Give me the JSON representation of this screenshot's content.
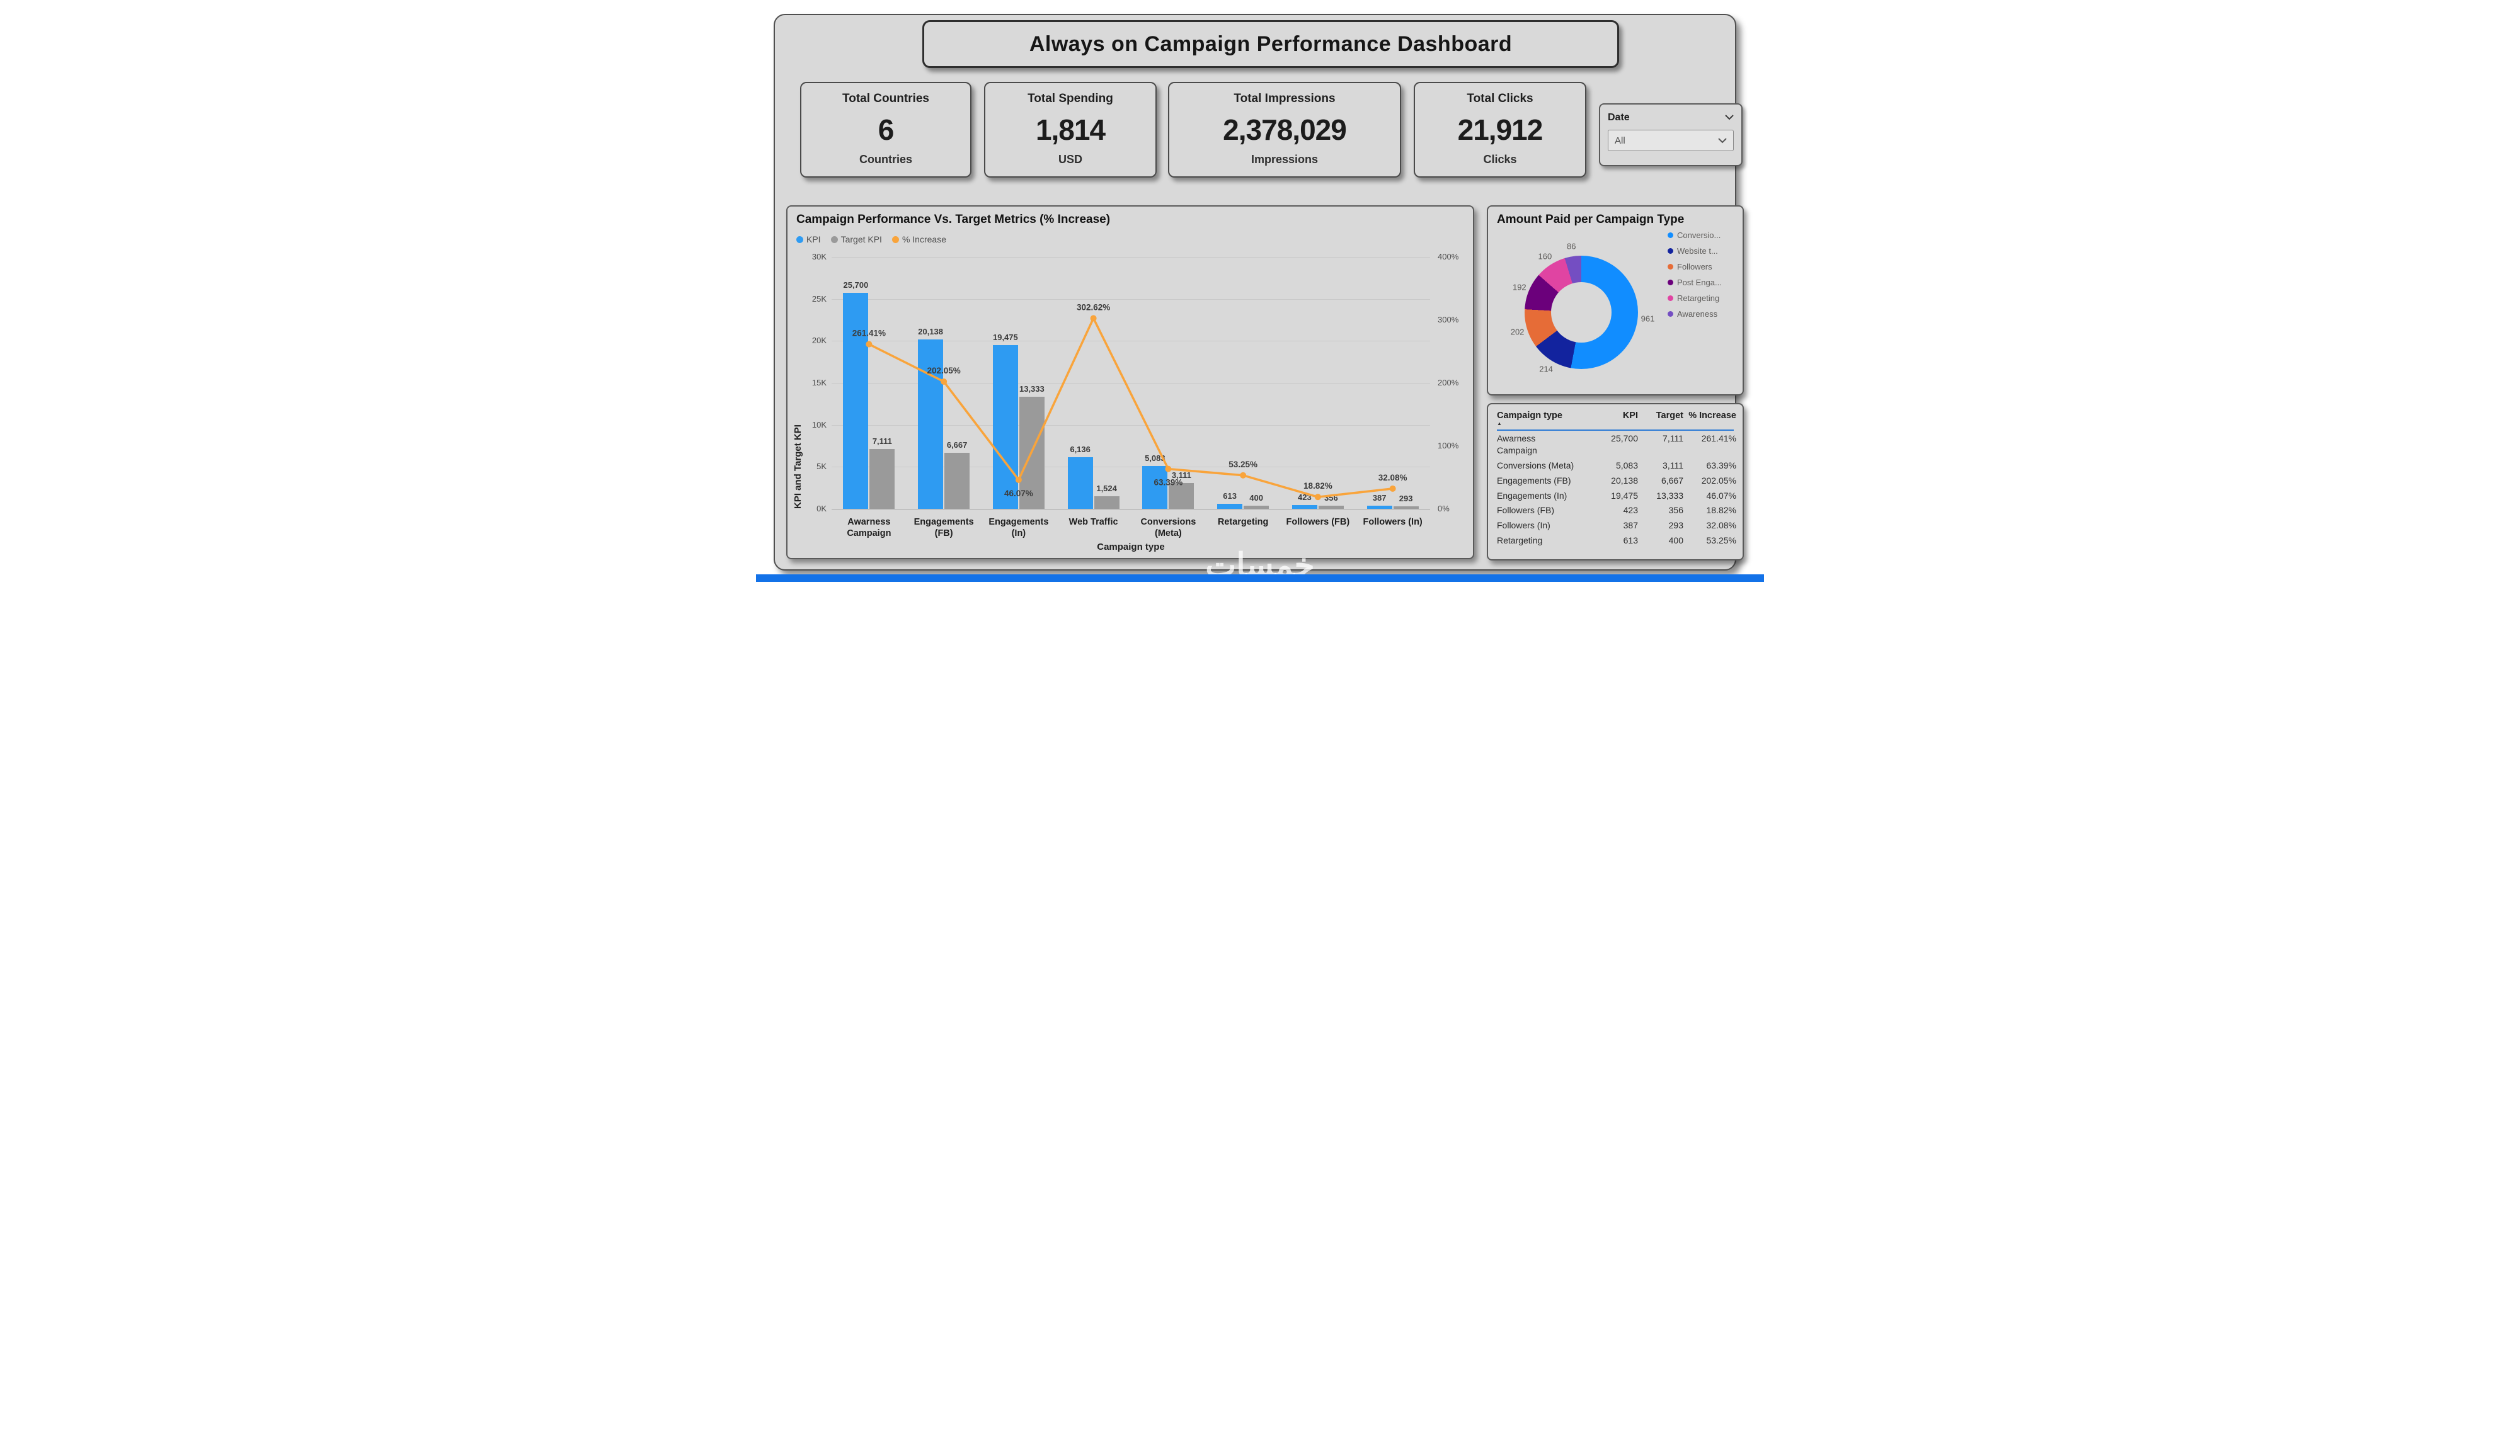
{
  "page": {
    "title": "Always on Campaign Performance Dashboard",
    "watermark": "خمسات"
  },
  "kpi_cards": [
    {
      "title": "Total Countries",
      "value": "6",
      "unit": "Countries"
    },
    {
      "title": "Total Spending",
      "value": "1,814",
      "unit": "USD"
    },
    {
      "title": "Total Impressions",
      "value": "2,378,029",
      "unit": "Impressions"
    },
    {
      "title": "Total Clicks",
      "value": "21,912",
      "unit": "Clicks"
    }
  ],
  "date_slicer": {
    "label": "Date",
    "selected": "All"
  },
  "colors": {
    "kpi_bar": "#2E9BF2",
    "target_bar": "#9A9A9A",
    "increase_line": "#F9A43B",
    "table_header_underline": "#2E7BD6",
    "bottom_strip": "#1372E8"
  },
  "chart_data": [
    {
      "type": "bar",
      "subtype": "clustered-column-and-line-combo",
      "title": "Campaign Performance Vs. Target Metrics (% Increase)",
      "xlabel": "Campaign type",
      "ylabel": "KPI and Target KPI",
      "legend": [
        "KPI",
        "Target KPI",
        "% Increase"
      ],
      "legend_position": "top-left",
      "grid": true,
      "categories": [
        "Awarness Campaign",
        "Engagements (FB)",
        "Engagements (In)",
        "Web Traffic",
        "Conversions (Meta)",
        "Retargeting",
        "Followers (FB)",
        "Followers (In)"
      ],
      "y_left_ticks": [
        "30K",
        "25K",
        "20K",
        "15K",
        "10K",
        "5K",
        "0K"
      ],
      "y_left_max": 30000,
      "y_right_ticks": [
        "400%",
        "300%",
        "200%",
        "100%",
        "0%"
      ],
      "y_right_max": 400,
      "series": [
        {
          "name": "KPI",
          "axis": "left",
          "values": [
            25700,
            20138,
            19475,
            6136,
            5083,
            613,
            423,
            387
          ],
          "labels": [
            "25,700",
            "20,138",
            "19,475",
            "6,136",
            "5,083",
            "613",
            "423",
            "387"
          ]
        },
        {
          "name": "Target KPI",
          "axis": "left",
          "values": [
            7111,
            6667,
            13333,
            1524,
            3111,
            400,
            356,
            293
          ],
          "labels": [
            "7,111",
            "6,667",
            "13,333",
            "1,524",
            "3,111",
            "400",
            "356",
            "293"
          ]
        },
        {
          "name": "% Increase",
          "axis": "right",
          "values": [
            261.41,
            202.05,
            46.07,
            302.62,
            63.39,
            53.25,
            18.82,
            32.08
          ],
          "labels": [
            "261.41%",
            "202.05%",
            "46.07%",
            "302.62%",
            "63.39%",
            "53.25%",
            "18.82%",
            "32.08%"
          ]
        }
      ]
    },
    {
      "type": "pie",
      "subtype": "donut",
      "title": "Amount Paid per Campaign Type",
      "legend_position": "right",
      "slices": [
        {
          "label": "Conversio...",
          "value": 961,
          "color": "#118DFF"
        },
        {
          "label": "Website t...",
          "value": 214,
          "color": "#12239E"
        },
        {
          "label": "Followers",
          "value": 202,
          "color": "#E66C37"
        },
        {
          "label": "Post Enga...",
          "value": 192,
          "color": "#6B007B"
        },
        {
          "label": "Retargeting",
          "value": 160,
          "color": "#E044A2"
        },
        {
          "label": "Awareness",
          "value": 86,
          "color": "#744EC2"
        }
      ]
    },
    {
      "type": "table",
      "columns": [
        "Campaign type",
        "KPI",
        "Target",
        "% Increase"
      ],
      "sort_column": "Campaign type",
      "sort_direction": "ascending",
      "rows": [
        [
          "Awarness\nCampaign",
          "25,700",
          "7,111",
          "261.41%"
        ],
        [
          "Conversions (Meta)",
          "5,083",
          "3,111",
          "63.39%"
        ],
        [
          "Engagements (FB)",
          "20,138",
          "6,667",
          "202.05%"
        ],
        [
          "Engagements (In)",
          "19,475",
          "13,333",
          "46.07%"
        ],
        [
          "Followers (FB)",
          "423",
          "356",
          "18.82%"
        ],
        [
          "Followers (In)",
          "387",
          "293",
          "32.08%"
        ],
        [
          "Retargeting",
          "613",
          "400",
          "53.25%"
        ]
      ]
    }
  ]
}
